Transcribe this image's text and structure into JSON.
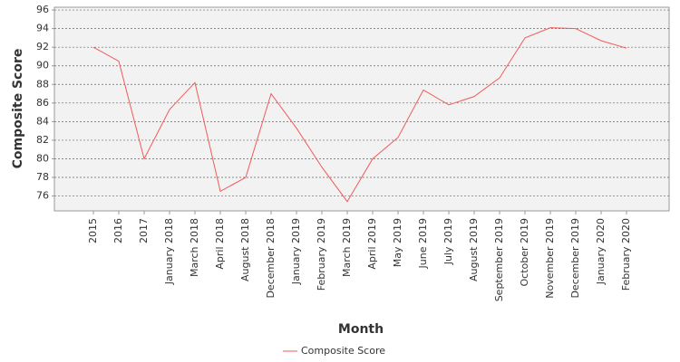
{
  "chart_data": {
    "type": "line",
    "x_label": "Month",
    "y_label": "Composite Score",
    "categories": [
      "2015",
      "2016",
      "2017",
      "January 2018",
      "March 2018",
      "April 2018",
      "August 2018",
      "December 2018",
      "January 2019",
      "February 2019",
      "March 2019",
      "April 2019",
      "May 2019",
      "June 2019",
      "July 2019",
      "August 2019",
      "September 2019",
      "October 2019",
      "November 2019",
      "December 2019",
      "January 2020",
      "February 2020"
    ],
    "series": [
      {
        "name": "Composite Score",
        "color": "#f05a5a",
        "values": [
          92,
          90.5,
          80,
          85.3,
          88.2,
          76.5,
          78,
          87,
          83.3,
          79.1,
          75.4,
          80,
          82.3,
          87.4,
          85.8,
          86.7,
          88.7,
          93,
          94.1,
          94,
          92.7,
          91.9
        ]
      }
    ],
    "ylim": [
      74.4,
      96.3
    ],
    "yticks": [
      76,
      78,
      80,
      82,
      84,
      86,
      88,
      90,
      92,
      94,
      96
    ],
    "grid": true,
    "legend": "bottom"
  }
}
